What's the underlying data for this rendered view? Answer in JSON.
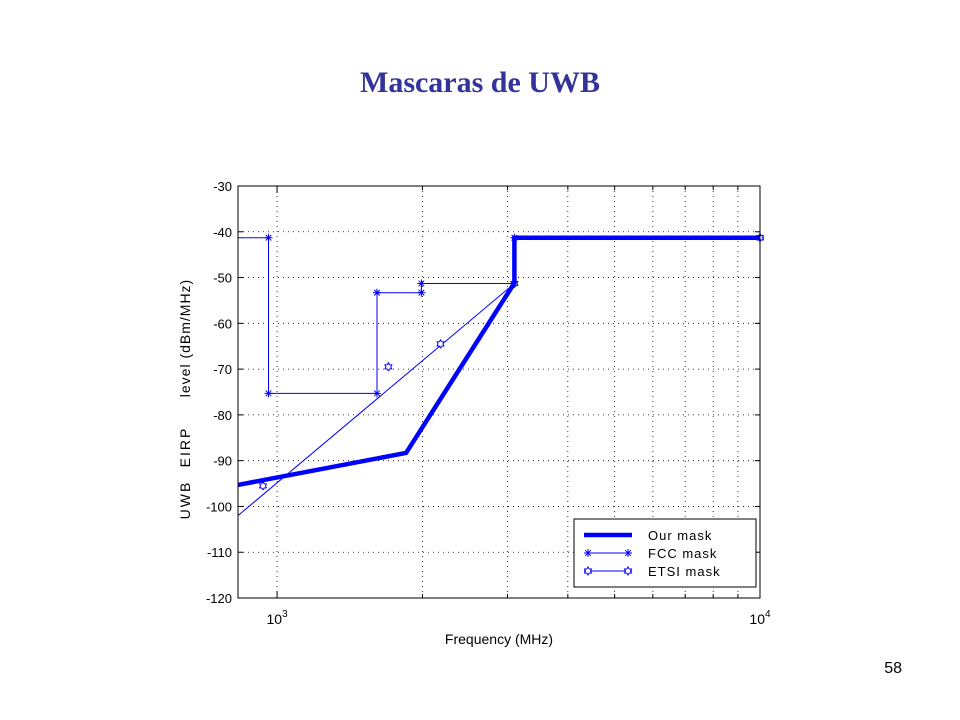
{
  "slide": {
    "title": "Mascaras de UWB",
    "page_number": "58"
  },
  "colors": {
    "title": "#333399",
    "series": "#0000ff",
    "grid": "#000000"
  },
  "chart_data": {
    "type": "line",
    "title": "",
    "xlabel": "Frequency (MHz)",
    "ylabel_parts": [
      "UWB",
      "EIRP",
      "level (dBm/MHz)"
    ],
    "x_scale": "log",
    "xlim": [
      830,
      10000
    ],
    "ylim": [
      -120,
      -30
    ],
    "x_tick_labels": [
      {
        "value": 1000,
        "base": "10",
        "exp": "3"
      },
      {
        "value": 10000,
        "base": "10",
        "exp": "4"
      }
    ],
    "x_minor_ticks": [
      2000,
      3000,
      4000,
      5000,
      6000,
      7000,
      8000,
      9000
    ],
    "y_ticks": [
      -30,
      -40,
      -50,
      -60,
      -70,
      -80,
      -90,
      -100,
      -110,
      -120
    ],
    "grid": true,
    "legend_position": "bottom-right",
    "series": [
      {
        "name": "Our mask",
        "style": "thick",
        "marker": "none",
        "points": [
          [
            830,
            -95.3
          ],
          [
            1850,
            -88.3
          ],
          [
            3100,
            -51.2
          ],
          [
            3100,
            -41.3
          ],
          [
            10000,
            -41.3
          ]
        ],
        "marker_points": []
      },
      {
        "name": "FCC mask",
        "style": "thin",
        "marker": "star",
        "points": [
          [
            830,
            -41.3
          ],
          [
            960,
            -41.3
          ],
          [
            960,
            -75.3
          ],
          [
            1610,
            -75.3
          ],
          [
            1610,
            -53.3
          ],
          [
            1990,
            -53.3
          ],
          [
            1990,
            -51.3
          ],
          [
            3100,
            -51.3
          ],
          [
            3100,
            -41.3
          ],
          [
            10000,
            -41.3
          ]
        ],
        "marker_points": [
          [
            960,
            -41.3
          ],
          [
            960,
            -75.3
          ],
          [
            1610,
            -75.3
          ],
          [
            1610,
            -53.3
          ],
          [
            1990,
            -53.3
          ],
          [
            1990,
            -51.3
          ],
          [
            3100,
            -41.3
          ],
          [
            10000,
            -41.3
          ]
        ]
      },
      {
        "name": "ETSI mask",
        "style": "thin",
        "marker": "hexagram",
        "points": [
          [
            830,
            -102
          ],
          [
            3100,
            -51.3
          ],
          [
            3100,
            -41.3
          ],
          [
            10000,
            -41.3
          ]
        ],
        "marker_points": [
          [
            935,
            -95.5
          ],
          [
            1700,
            -69.5
          ],
          [
            2180,
            -64.5
          ],
          [
            3100,
            -51.3
          ],
          [
            10000,
            -41.3
          ]
        ]
      }
    ]
  }
}
